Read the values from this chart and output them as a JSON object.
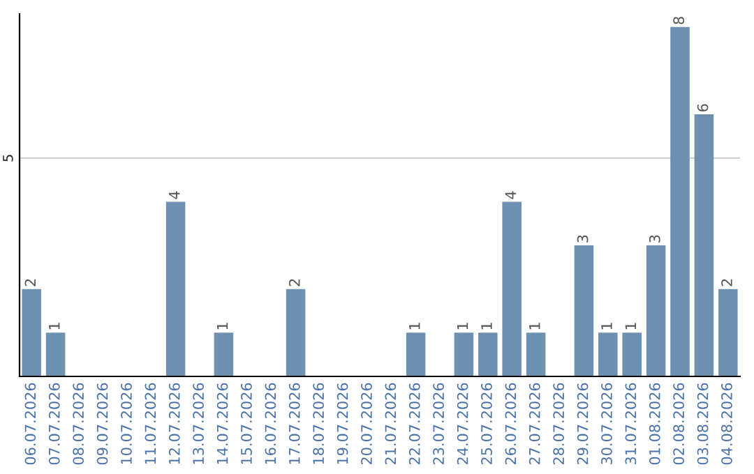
{
  "chart_data": {
    "type": "bar",
    "categories": [
      "06.07.2026",
      "07.07.2026",
      "08.07.2026",
      "09.07.2026",
      "10.07.2026",
      "11.07.2026",
      "12.07.2026",
      "13.07.2026",
      "14.07.2026",
      "15.07.2026",
      "16.07.2026",
      "17.07.2026",
      "18.07.2026",
      "19.07.2026",
      "20.07.2026",
      "21.07.2026",
      "22.07.2026",
      "23.07.2026",
      "24.07.2026",
      "25.07.2026",
      "26.07.2026",
      "27.07.2026",
      "28.07.2026",
      "29.07.2026",
      "30.07.2026",
      "31.07.2026",
      "01.08.2026",
      "02.08.2026",
      "03.08.2026",
      "04.08.2026"
    ],
    "values": [
      2,
      1,
      0,
      0,
      0,
      0,
      4,
      0,
      1,
      0,
      0,
      2,
      0,
      0,
      0,
      0,
      1,
      0,
      1,
      1,
      4,
      1,
      0,
      3,
      1,
      1,
      3,
      8,
      6,
      2
    ],
    "value_labels": [
      "2",
      "1",
      null,
      null,
      null,
      null,
      "4",
      null,
      "1",
      null,
      null,
      "2",
      null,
      null,
      null,
      null,
      "1",
      null,
      "1",
      "1",
      "4",
      "1",
      null,
      "3",
      "1",
      "1",
      "3",
      "8",
      "6",
      "2"
    ],
    "color": "#6d8fb0",
    "ylim": [
      0,
      8.3
    ],
    "yticks": [
      5
    ],
    "grid": "y"
  }
}
